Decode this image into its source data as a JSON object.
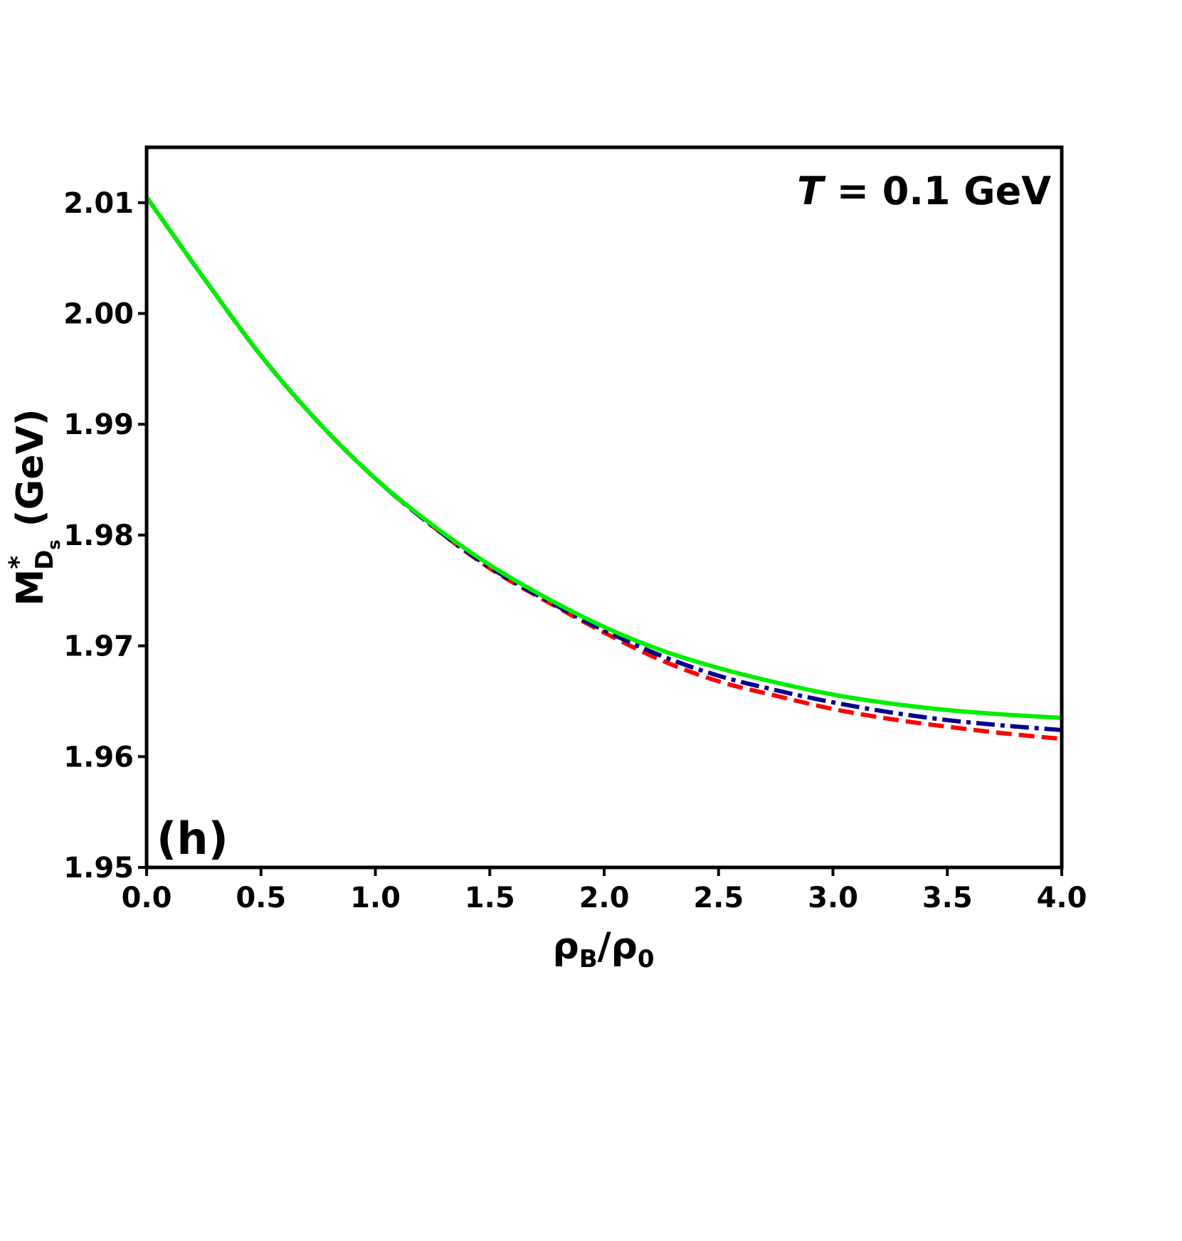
{
  "chart_data": {
    "type": "line",
    "xlim": [
      0.0,
      4.0
    ],
    "ylim": [
      1.95,
      2.015
    ],
    "x_ticks": [
      "0.0",
      "0.5",
      "1.0",
      "1.5",
      "2.0",
      "2.5",
      "3.0",
      "3.5",
      "4.0"
    ],
    "y_ticks": [
      "1.95",
      "1.96",
      "1.97",
      "1.98",
      "1.99",
      "2.00",
      "2.01"
    ],
    "xlabel": {
      "main": "ρ",
      "sub1": "B",
      "mid": "/ρ",
      "sub2": "0"
    },
    "ylabel": {
      "main": "M",
      "sup": "*",
      "sub": "D",
      "subsub": "s",
      "unit": " (GeV)"
    },
    "annotation": {
      "var": "T",
      "text": " = 0.1 GeV"
    },
    "panel_label": "(h)",
    "grid": false,
    "series": [
      {
        "color": "#ff0000",
        "dash": "dashed",
        "x": [
          0.0,
          0.25,
          0.5,
          0.75,
          1.0,
          1.25,
          1.5,
          1.75,
          2.0,
          2.25,
          2.5,
          2.75,
          3.0,
          3.25,
          3.5,
          3.75,
          4.0
        ],
        "y": [
          2.0105,
          2.0032,
          1.9962,
          1.9902,
          1.9851,
          1.9808,
          1.977,
          1.974,
          1.9712,
          1.9687,
          1.9668,
          1.9655,
          1.9643,
          1.9634,
          1.9627,
          1.9621,
          1.9616
        ]
      },
      {
        "color": "#00008b",
        "dash": "dashdot",
        "x": [
          0.0,
          0.25,
          0.5,
          0.75,
          1.0,
          1.25,
          1.5,
          1.75,
          2.0,
          2.25,
          2.5,
          2.75,
          3.0,
          3.25,
          3.5,
          3.75,
          4.0
        ],
        "y": [
          2.0105,
          2.0032,
          1.9962,
          1.9902,
          1.9851,
          1.9808,
          1.9771,
          1.9741,
          1.9714,
          1.9691,
          1.9673,
          1.966,
          1.9649,
          1.964,
          1.9633,
          1.9628,
          1.9624
        ]
      },
      {
        "color": "#00ee00",
        "dash": "solid",
        "x": [
          0.0,
          0.25,
          0.5,
          0.75,
          1.0,
          1.25,
          1.5,
          1.75,
          2.0,
          2.25,
          2.5,
          2.75,
          3.0,
          3.25,
          3.5,
          3.75,
          4.0
        ],
        "y": [
          2.0105,
          2.0032,
          1.9962,
          1.9902,
          1.9851,
          1.9809,
          1.9773,
          1.9743,
          1.9717,
          1.9696,
          1.968,
          1.9667,
          1.9656,
          1.9648,
          1.9642,
          1.9638,
          1.9635
        ]
      }
    ]
  }
}
